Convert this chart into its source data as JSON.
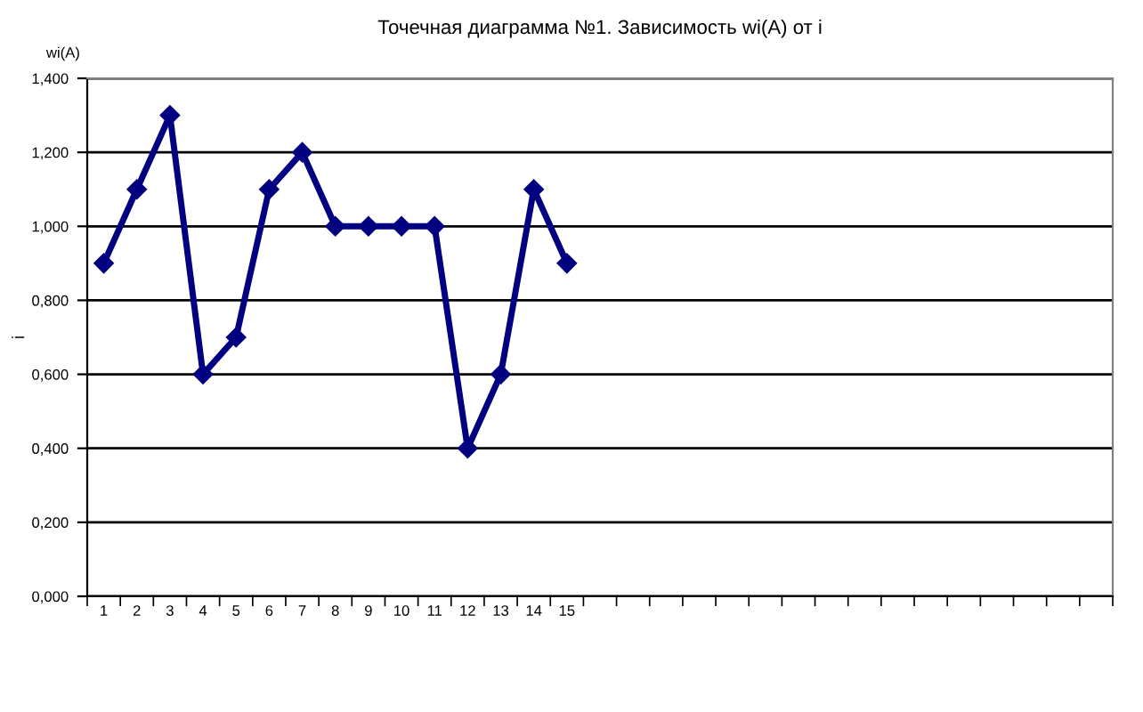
{
  "chart_data": {
    "type": "line",
    "title": "Точечная диаграмма №1. Зависимость wi(A) от i",
    "ylabel": "i",
    "annotations": [
      "wi(A)"
    ],
    "categories": [
      "1",
      "2",
      "3",
      "4",
      "5",
      "6",
      "7",
      "8",
      "9",
      "10",
      "11",
      "12",
      "13",
      "14",
      "15",
      null,
      null,
      null,
      null,
      null,
      null,
      null,
      null,
      null,
      null,
      null,
      null,
      null,
      null,
      null,
      null
    ],
    "series": [
      {
        "color": "#000080",
        "values": [
          0.9,
          1.1,
          1.3,
          0.6,
          0.7,
          1.1,
          1.2,
          1.0,
          1.0,
          1.0,
          1.0,
          0.4,
          0.6,
          1.1,
          0.9,
          null,
          null,
          null,
          null,
          null,
          null,
          null,
          null,
          null,
          null,
          null,
          null,
          null,
          null,
          null,
          null
        ]
      }
    ],
    "ylim": [
      0,
      1.4
    ],
    "yticks": [
      {
        "value": 0,
        "label": "0,000"
      },
      {
        "value": 0.2,
        "label": "0,200"
      },
      {
        "value": 0.4,
        "label": "0,400"
      },
      {
        "value": 0.6,
        "label": "0,600"
      },
      {
        "value": 0.8,
        "label": "0,800"
      },
      {
        "value": 1.0,
        "label": "1,000"
      },
      {
        "value": 1.2,
        "label": "1,200"
      },
      {
        "value": 1.4,
        "label": "1,400"
      }
    ],
    "grid": "y",
    "marker": "diamond",
    "line_style": "solid"
  }
}
